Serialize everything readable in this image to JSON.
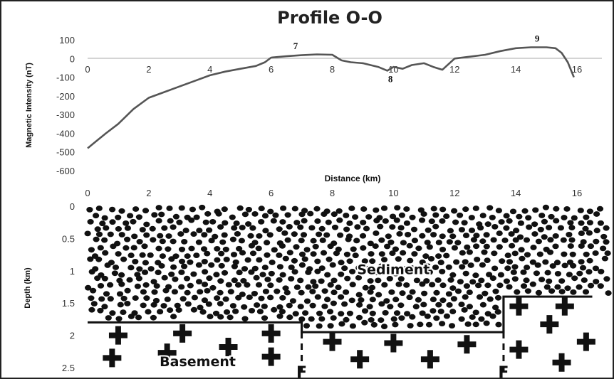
{
  "chart_data": [
    {
      "type": "line",
      "title": "Profile O-O",
      "xlabel": "Distance (km)",
      "ylabel": "Magnetic Intensity (nT)",
      "xlim": [
        0,
        16
      ],
      "ylim": [
        -600,
        100
      ],
      "x_ticks": [
        "0",
        "2",
        "4",
        "6",
        "8",
        "10",
        "12",
        "14",
        "16"
      ],
      "y_ticks": [
        "100",
        "0",
        "-100",
        "-200",
        "-300",
        "-400",
        "-500",
        "-600"
      ],
      "grid": false,
      "series": [
        {
          "color": "#555555",
          "x": [
            0,
            0.3,
            0.6,
            1.0,
            1.5,
            2.0,
            2.5,
            3.0,
            3.5,
            4.0,
            4.5,
            5.0,
            5.5,
            5.8,
            6.0,
            6.5,
            7.0,
            7.5,
            8.0,
            8.3,
            8.6,
            9.0,
            9.5,
            9.8,
            10.0,
            10.3,
            10.6,
            11.0,
            11.3,
            11.6,
            12.0,
            12.5,
            13.0,
            13.5,
            14.0,
            14.5,
            15.0,
            15.3,
            15.5,
            15.7,
            15.9
          ],
          "values": [
            -480,
            -440,
            -400,
            -350,
            -270,
            -210,
            -180,
            -150,
            -120,
            -90,
            -70,
            -55,
            -40,
            -20,
            5,
            12,
            18,
            22,
            20,
            -10,
            -20,
            -25,
            -45,
            -65,
            -45,
            -55,
            -35,
            -25,
            -45,
            -60,
            0,
            10,
            20,
            40,
            55,
            60,
            60,
            55,
            30,
            -20,
            -100
          ]
        }
      ],
      "annotations": [
        {
          "text": "7",
          "x": 6.8,
          "y": 20
        },
        {
          "text": "8",
          "x": 9.9,
          "y": -65
        },
        {
          "text": "9",
          "x": 14.7,
          "y": 60
        }
      ]
    },
    {
      "type": "scatter",
      "ylabel": "Depth (km)",
      "xlim": [
        0,
        16.5
      ],
      "ylim": [
        2.5,
        0
      ],
      "x_ticks": [
        "0",
        "2",
        "4",
        "6",
        "8",
        "10",
        "12",
        "14",
        "16"
      ],
      "y_ticks": [
        "0",
        "0.5",
        "1",
        "1.5",
        "2",
        "2.5"
      ],
      "basement_top": [
        {
          "x_from": 0,
          "x_to": 7.0,
          "depth": 1.8
        },
        {
          "x_from": 7.0,
          "x_to": 13.6,
          "depth": 1.95
        },
        {
          "x_from": 13.6,
          "x_to": 16.5,
          "depth": 1.4
        }
      ],
      "faults": [
        {
          "label": "F",
          "x": 7.0
        },
        {
          "label": "F",
          "x": 13.6
        }
      ],
      "units": [
        {
          "label": "Sediment",
          "x": 10.0,
          "depth": 1.05
        },
        {
          "label": "Basement",
          "x": 3.6,
          "depth": 2.48
        }
      ]
    }
  ]
}
